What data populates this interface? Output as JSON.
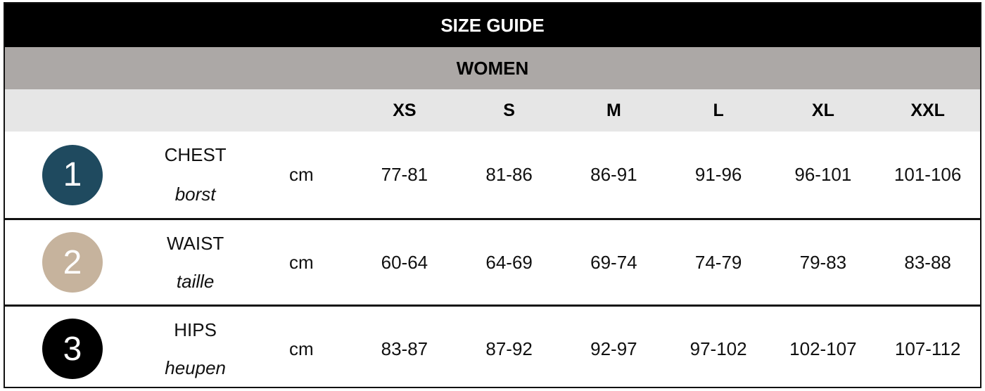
{
  "title": "SIZE GUIDE",
  "section": "WOMEN",
  "sizes": [
    "XS",
    "S",
    "M",
    "L",
    "XL",
    "XXL"
  ],
  "rows": [
    {
      "number": "1",
      "color": "#1f4a5f",
      "label": "CHEST",
      "translation": "borst",
      "unit": "cm",
      "values": [
        "77-81",
        "81-86",
        "86-91",
        "91-96",
        "96-101",
        "101-106"
      ]
    },
    {
      "number": "2",
      "color": "#c6b39d",
      "label": "WAIST",
      "translation": "taille",
      "unit": "cm",
      "values": [
        "60-64",
        "64-69",
        "69-74",
        "74-79",
        "79-83",
        "83-88"
      ]
    },
    {
      "number": "3",
      "color": "#000000",
      "label": "HIPS",
      "translation": "heupen",
      "unit": "cm",
      "values": [
        "83-87",
        "87-92",
        "92-97",
        "97-102",
        "102-107",
        "107-112"
      ]
    }
  ]
}
